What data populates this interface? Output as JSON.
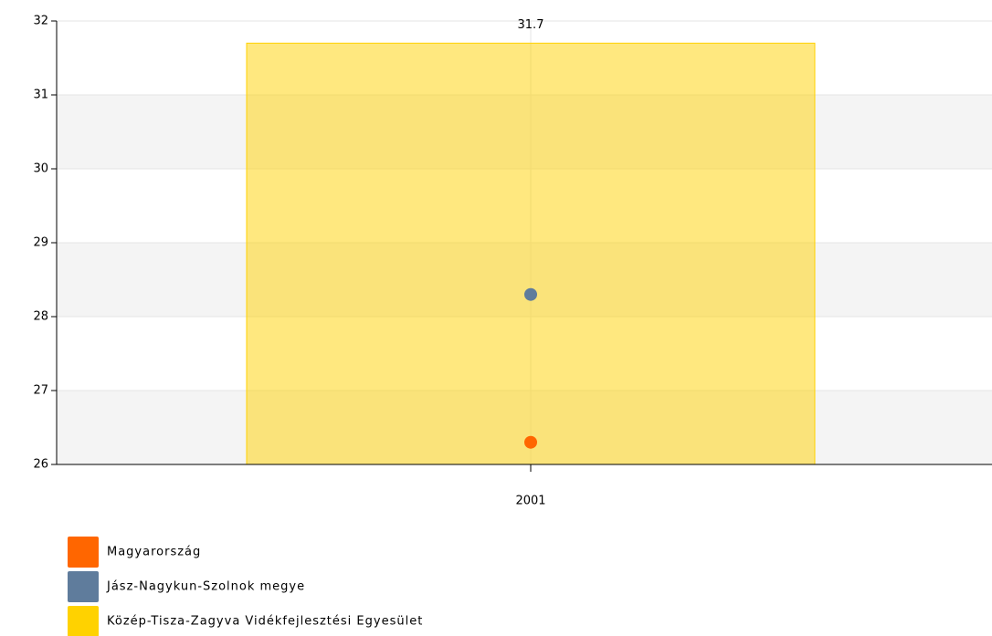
{
  "chart_data": {
    "type": "bar",
    "categories": [
      "2001"
    ],
    "series": [
      {
        "name": "Magyarország",
        "color": "#ff6600",
        "type": "scatter",
        "values": [
          26.3
        ]
      },
      {
        "name": "Jász-Nagykun-Szolnok megye",
        "color": "#5f7c9c",
        "type": "scatter",
        "values": [
          28.3
        ]
      },
      {
        "name": "Közép-Tisza-Zagyva Vidékfejlesztési Egyesület",
        "color": "#ffd200",
        "type": "bar",
        "values": [
          31.7
        ]
      }
    ],
    "ylim": [
      26,
      32
    ],
    "yticks": [
      26,
      27,
      28,
      29,
      30,
      31,
      32
    ],
    "grid": true
  }
}
